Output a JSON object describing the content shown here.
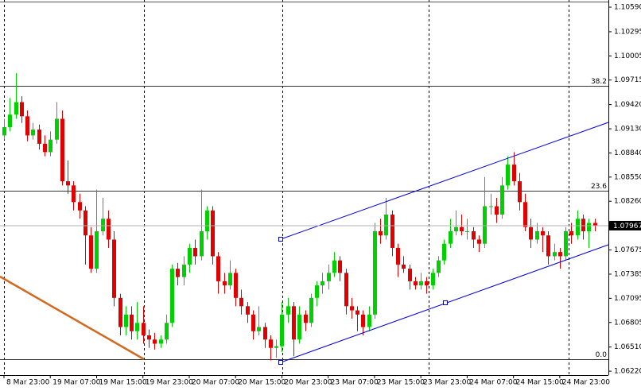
{
  "chart_data": {
    "type": "candlestick",
    "categories": [
      "8 Mar 23:00",
      null,
      null,
      null,
      null,
      null,
      null,
      null,
      "19 Mar 07:00",
      null,
      null,
      null,
      null,
      null,
      null,
      null,
      "19 Mar 15:00",
      null,
      null,
      null,
      null,
      null,
      null,
      null,
      "19 Mar 23:00",
      null,
      null,
      null,
      null,
      null,
      null,
      null,
      "20 Mar 07:00",
      null,
      null,
      null,
      null,
      null,
      null,
      null,
      "20 Mar 15:00",
      null,
      null,
      null,
      null,
      null,
      null,
      null,
      "20 Mar 23:00",
      null,
      null,
      null,
      null,
      null,
      null,
      null,
      "23 Mar 07:00",
      null,
      null,
      null,
      null,
      null,
      null,
      null,
      "23 Mar 15:00",
      null,
      null,
      null,
      null,
      null,
      null,
      null,
      "23 Mar 23:00",
      null,
      null,
      null,
      null,
      null,
      null,
      null,
      "24 Mar 07:00",
      null,
      null,
      null,
      null,
      null,
      null,
      null,
      "24 Mar 15:00",
      null,
      null,
      null,
      null,
      null,
      null,
      null,
      "24 Mar 23:00",
      null,
      null,
      null,
      null,
      null,
      null
    ],
    "open": [
      1.0905,
      1.0915,
      1.093,
      1.0945,
      1.0928,
      1.0905,
      1.0912,
      1.0895,
      1.0885,
      1.09,
      1.0925,
      1.085,
      1.0845,
      1.0825,
      1.0815,
      1.0785,
      1.0745,
      1.079,
      1.0805,
      1.078,
      1.071,
      1.0675,
      1.069,
      1.067,
      1.068,
      1.0665,
      1.066,
      1.0655,
      1.066,
      1.068,
      1.0745,
      1.0735,
      1.075,
      1.077,
      1.076,
      1.079,
      1.0815,
      1.076,
      1.073,
      1.0725,
      1.074,
      1.071,
      1.07,
      1.069,
      1.067,
      1.0675,
      1.066,
      1.065,
      1.0652,
      1.069,
      1.07,
      1.066,
      1.069,
      1.068,
      1.071,
      1.0725,
      1.073,
      1.074,
      1.0755,
      1.074,
      1.07,
      1.0695,
      1.069,
      1.0675,
      1.069,
      1.079,
      1.0785,
      1.081,
      1.077,
      1.075,
      1.0745,
      1.073,
      1.0725,
      1.073,
      1.0725,
      1.074,
      1.0755,
      1.0775,
      1.079,
      1.0795,
      1.079,
      1.079,
      1.078,
      1.0775,
      1.082,
      1.082,
      1.081,
      1.0845,
      1.087,
      1.085,
      1.0825,
      1.0795,
      1.078,
      1.079,
      1.0785,
      1.076,
      1.0765,
      1.076,
      1.079,
      1.0785,
      1.0805,
      1.079,
      1.08
    ],
    "high": [
      1.0925,
      1.095,
      1.098,
      1.0952,
      1.0935,
      1.092,
      1.0918,
      1.0905,
      1.091,
      1.0945,
      1.0935,
      1.0875,
      1.085,
      1.0835,
      1.082,
      1.0795,
      1.084,
      1.083,
      1.0815,
      1.079,
      1.0715,
      1.07,
      1.07,
      1.0705,
      1.07,
      1.0672,
      1.0668,
      1.0665,
      1.069,
      1.075,
      1.0752,
      1.076,
      1.0775,
      1.078,
      1.084,
      1.082,
      1.082,
      1.0765,
      1.074,
      1.0755,
      1.0745,
      1.072,
      1.0705,
      1.0695,
      1.07,
      1.068,
      1.0665,
      1.066,
      1.0705,
      1.071,
      1.0705,
      1.07,
      1.0695,
      1.0715,
      1.073,
      1.074,
      1.075,
      1.0765,
      1.076,
      1.0745,
      1.071,
      1.07,
      1.0695,
      1.07,
      1.08,
      1.0805,
      1.083,
      1.0815,
      1.0775,
      1.076,
      1.075,
      1.0735,
      1.074,
      1.0735,
      1.0745,
      1.076,
      1.078,
      1.0805,
      1.0815,
      1.081,
      1.0805,
      1.0795,
      1.0785,
      1.0855,
      1.0835,
      1.083,
      1.0855,
      1.088,
      1.0885,
      1.086,
      1.0835,
      1.0805,
      1.08,
      1.0795,
      1.079,
      1.0775,
      1.077,
      1.0795,
      1.08,
      1.0815,
      1.081,
      1.0805,
      1.0805
    ],
    "low": [
      1.09,
      1.091,
      1.0925,
      1.092,
      1.0898,
      1.09,
      1.0888,
      1.088,
      1.088,
      1.0895,
      1.0845,
      1.0835,
      1.0815,
      1.0805,
      1.075,
      1.074,
      1.074,
      1.0785,
      1.077,
      1.07,
      1.0665,
      1.0665,
      1.066,
      1.066,
      1.0655,
      1.065,
      1.0648,
      1.065,
      1.0655,
      1.0675,
      1.0725,
      1.0725,
      1.074,
      1.075,
      1.0755,
      1.078,
      1.075,
      1.0715,
      1.0715,
      1.072,
      1.07,
      1.069,
      1.068,
      1.066,
      1.0665,
      1.065,
      1.0635,
      1.0638,
      1.0645,
      1.068,
      1.064,
      1.0655,
      1.067,
      1.0675,
      1.07,
      1.0715,
      1.072,
      1.0735,
      1.073,
      1.069,
      1.0685,
      1.067,
      1.0665,
      1.067,
      1.0685,
      1.0775,
      1.078,
      1.076,
      1.0735,
      1.074,
      1.072,
      1.072,
      1.072,
      1.0715,
      1.072,
      1.0735,
      1.075,
      1.077,
      1.0785,
      1.0785,
      1.078,
      1.077,
      1.0765,
      1.077,
      1.081,
      1.08,
      1.0805,
      1.084,
      1.0845,
      1.0815,
      1.079,
      1.077,
      1.0775,
      1.0765,
      1.075,
      1.0755,
      1.0745,
      1.0755,
      1.0775,
      1.078,
      1.078,
      1.077,
      1.079
    ],
    "close": [
      1.0915,
      1.093,
      1.0945,
      1.0928,
      1.0905,
      1.0912,
      1.0895,
      1.0885,
      1.09,
      1.0925,
      1.085,
      1.0845,
      1.0825,
      1.0815,
      1.0785,
      1.0745,
      1.079,
      1.0805,
      1.078,
      1.071,
      1.0675,
      1.069,
      1.067,
      1.068,
      1.0665,
      1.066,
      1.0655,
      1.066,
      1.068,
      1.0745,
      1.0735,
      1.075,
      1.077,
      1.076,
      1.079,
      1.0815,
      1.076,
      1.073,
      1.0725,
      1.074,
      1.071,
      1.07,
      1.069,
      1.067,
      1.0675,
      1.066,
      1.065,
      1.0652,
      1.069,
      1.07,
      1.066,
      1.069,
      1.068,
      1.071,
      1.0725,
      1.073,
      1.074,
      1.0755,
      1.074,
      1.07,
      1.0695,
      1.069,
      1.0675,
      1.069,
      1.079,
      1.0785,
      1.081,
      1.077,
      1.075,
      1.0745,
      1.073,
      1.0725,
      1.073,
      1.0725,
      1.074,
      1.0755,
      1.0775,
      1.079,
      1.0795,
      1.079,
      1.079,
      1.078,
      1.0775,
      1.082,
      1.082,
      1.081,
      1.0845,
      1.087,
      1.085,
      1.0825,
      1.0795,
      1.078,
      1.079,
      1.0785,
      1.076,
      1.0765,
      1.076,
      1.079,
      1.0785,
      1.0805,
      1.079,
      1.08,
      1.0797
    ],
    "up_color": "#00d000",
    "down_color": "#e00000",
    "ylim": [
      1.06173,
      1.10676
    ],
    "yticks": [
      {
        "value": 1.1059,
        "label": "1.10590"
      },
      1.10295,
      1.10005,
      1.09715,
      {
        "value": 1.0942,
        "label": "1.09420"
      },
      {
        "value": 1.0913,
        "label": "1.09130"
      },
      {
        "value": 1.0884,
        "label": "1.08840"
      },
      {
        "value": 1.0855,
        "label": "1.08550"
      },
      {
        "value": 1.0826,
        "label": "1.08260"
      },
      1.07675,
      1.07385,
      1.07095,
      1.06805,
      {
        "value": 1.0651,
        "label": "1.06510"
      },
      {
        "value": 1.0622,
        "label": "1.06220"
      }
    ],
    "current_price": 1.07967,
    "fibo_levels": [
      {
        "label": "38.2",
        "price": 1.09646
      },
      {
        "label": "23.6",
        "price": 1.08386
      },
      {
        "label": "0.0",
        "price": 1.06364
      }
    ]
  }
}
